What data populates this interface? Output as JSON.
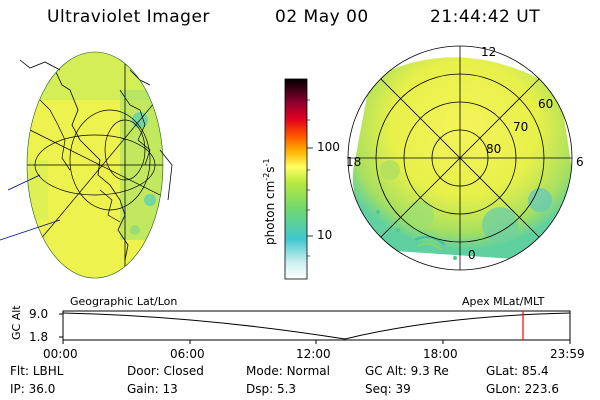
{
  "header": {
    "title": "Ultraviolet Imager",
    "date": "02 May 00",
    "time": "21:44:42 UT"
  },
  "left_panel": {
    "caption": "Geographic Lat/Lon"
  },
  "right_panel": {
    "caption": "Apex MLat/MLT",
    "mlt_labels": [
      "12",
      "18",
      "6",
      "0"
    ],
    "lat_labels": [
      "60",
      "70",
      "80"
    ]
  },
  "colorbar": {
    "unit_label": "photon cm",
    "unit_exp1": "-2",
    "unit_mid": "s",
    "unit_exp2": "-1",
    "ticks": [
      "100",
      "10"
    ],
    "scale": "log"
  },
  "altitude_plot": {
    "ylabel": "GC Alt",
    "y_ticks": [
      "9.0",
      "1.8"
    ],
    "x_ticks": [
      "00:00",
      "06:00",
      "12:00",
      "18:00",
      "23:59"
    ],
    "current_time_fraction": 0.9074
  },
  "status": {
    "row1": [
      {
        "key": "Flt:",
        "value": "LBHL"
      },
      {
        "key": "Door:",
        "value": "Closed"
      },
      {
        "key": "Mode:",
        "value": "Normal"
      },
      {
        "key": "GC Alt:",
        "value": "9.3 Re"
      },
      {
        "key": "GLat:",
        "value": "85.4"
      }
    ],
    "row2": [
      {
        "key": "IP:",
        "value": "36.0"
      },
      {
        "key": "Gain:",
        "value": "13"
      },
      {
        "key": "Dsp:",
        "value": "5.3"
      },
      {
        "key": "Seq:",
        "value": "39"
      },
      {
        "key": "GLon:",
        "value": "223.6"
      }
    ]
  },
  "colors": {
    "marker": "#ff0000",
    "yellow": "#f2f24a",
    "green": "#7ed957",
    "cyan": "#3cc8c8"
  }
}
